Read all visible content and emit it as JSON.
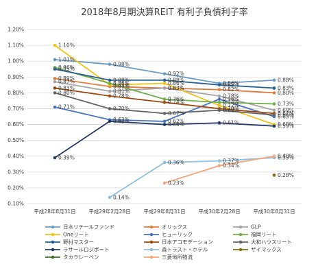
{
  "chart_data": {
    "type": "line",
    "title": "2018年8月期決算REIT 有利子負債利子率",
    "xlabel": "",
    "ylabel": "",
    "categories": [
      "平成28年8月31日",
      "平成29年2月28日",
      "平成29年8月31日",
      "平成30年2月28日",
      "平成30年8月31日"
    ],
    "y_ticks": [
      "0.10%",
      "0.20%",
      "0.30%",
      "0.40%",
      "0.50%",
      "0.60%",
      "0.70%",
      "0.80%",
      "0.90%",
      "1.00%",
      "1.10%",
      "1.20%"
    ],
    "ylim": [
      0.1,
      1.2
    ],
    "grid": true,
    "legend_position": "bottom",
    "series": [
      {
        "name": "日本リテールファンド",
        "color": "#6a9bc3",
        "values": [
          1.01,
          0.98,
          0.92,
          0.86,
          0.88
        ],
        "labels": [
          "1.01%",
          "0.98%",
          "0.92%",
          "0.86%",
          "0.88%"
        ]
      },
      {
        "name": "オリックス",
        "color": "#e07b39",
        "values": [
          0.89,
          0.84,
          0.83,
          0.82,
          0.8
        ],
        "labels": [
          "0.89%",
          "0.84%",
          "0.83%",
          "0.82%",
          "0.80%"
        ]
      },
      {
        "name": "GLP",
        "color": "#a5a5a5",
        "values": [
          0.87,
          0.81,
          0.83,
          0.78,
          0.69
        ],
        "labels": [
          "0.87%",
          "0.81%",
          "0.83%",
          "0.78%",
          "0.69%"
        ]
      },
      {
        "name": "Oneリート",
        "color": "#f2c314",
        "values": [
          1.1,
          0.85,
          0.86,
          0.72,
          0.6
        ],
        "labels": [
          "1.10%",
          "0.85%",
          "0.86%",
          "0.72%",
          "0.60%"
        ]
      },
      {
        "name": "ヒューリック",
        "color": "#4472c4",
        "values": [
          0.71,
          0.63,
          0.62,
          0.76,
          0.65
        ],
        "labels": [
          "0.71%",
          "0.63%",
          "0.62%",
          "0.76%",
          "0.65%"
        ]
      },
      {
        "name": "福岡リート",
        "color": "#70ad47",
        "values": [
          0.96,
          0.86,
          0.76,
          0.74,
          0.73
        ],
        "labels": [
          "0.96%",
          "0.86%",
          "0.76%",
          "0.74%",
          "0.73%"
        ]
      },
      {
        "name": "野村マスター",
        "color": "#255e91",
        "values": [
          0.95,
          0.88,
          0.88,
          0.85,
          0.83
        ],
        "labels": [
          "0.95%",
          "0.88%",
          "0.88%",
          "0.85%",
          "0.83%"
        ]
      },
      {
        "name": "日本アコモデーション",
        "color": "#9e480e",
        "values": [
          0.83,
          0.78,
          0.74,
          0.7,
          0.67
        ],
        "labels": [
          "0.83%",
          "0.78%",
          "0.74%",
          "0.70%",
          "0.67%"
        ]
      },
      {
        "name": "大和ハウスリート",
        "color": "#636363",
        "values": [
          0.8,
          0.7,
          0.67,
          0.69,
          0.66
        ],
        "labels": [
          "0.80%",
          "0.70%",
          "0.67%",
          "0.69%",
          "0.66%"
        ]
      },
      {
        "name": "ラサールロジポート",
        "color": "#1f3864",
        "values": [
          0.39,
          0.62,
          0.6,
          0.61,
          0.59
        ],
        "labels": [
          "0.39%",
          "0.62%",
          "0.60%",
          "0.61%",
          "0.59%"
        ]
      },
      {
        "name": "森トラスト・ホテル",
        "color": "#8fbfde",
        "values": [
          null,
          0.14,
          0.36,
          0.37,
          0.39
        ],
        "labels": [
          null,
          "0.14%",
          "0.36%",
          "0.37%",
          "0.39%"
        ]
      },
      {
        "name": "ザイマックス",
        "color": "#8a6d0b",
        "values": [
          null,
          null,
          null,
          null,
          0.28
        ],
        "labels": [
          null,
          null,
          null,
          null,
          "0.28%"
        ]
      },
      {
        "name": "タカラレーベン",
        "color": "#3d6b2a",
        "values": [
          null,
          null,
          null,
          null,
          null
        ],
        "labels": [
          null,
          null,
          null,
          null,
          null
        ]
      },
      {
        "name": "三菱地所物流",
        "color": "#f4a57a",
        "values": [
          null,
          null,
          0.23,
          0.34,
          0.4
        ],
        "labels": [
          null,
          null,
          "0.23%",
          "0.34%",
          "0.40%"
        ]
      }
    ]
  }
}
